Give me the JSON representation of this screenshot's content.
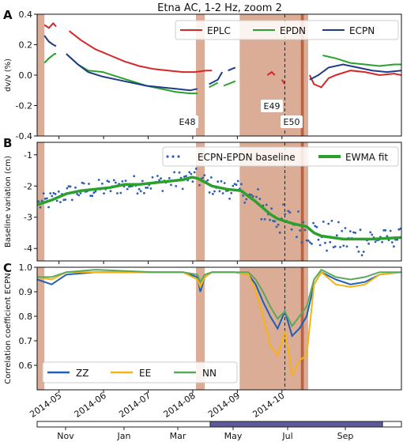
{
  "figure": {
    "title": "Etna AC, 1-2 Hz, zoom 2",
    "x_ticks": [
      "2014-05",
      "2014-06",
      "2014-07",
      "2014-08",
      "2014-09",
      "2014-10"
    ],
    "bottom_timeline": {
      "labels": [
        "Nov",
        "Jan",
        "Mar",
        "May",
        "Jul",
        "Sep"
      ],
      "highlight_color": "#5b5b97"
    },
    "shading_color": "#c8805e",
    "eruption_line_color": "#b85a35"
  },
  "chart_data": [
    {
      "panel": "A",
      "type": "line",
      "ylabel": "dv/v (%)",
      "ylim": [
        -0.4,
        0.4
      ],
      "yticks": [
        "0.4",
        "0.2",
        "0.0",
        "-0.2",
        "-0.4"
      ],
      "legend": [
        "EPLC",
        "EPDN",
        "ECPN"
      ],
      "legend_position": "top-right",
      "annotations": [
        "E48",
        "E49",
        "E50"
      ],
      "series": [
        {
          "name": "EPLC",
          "color": "#d62728",
          "segments": [
            [
              [
                5,
                0.33
              ],
              [
                8,
                0.31
              ],
              [
                11,
                0.34
              ],
              [
                13,
                0.32
              ]
            ],
            [
              [
                22,
                0.29
              ],
              [
                30,
                0.23
              ],
              [
                40,
                0.17
              ],
              [
                50,
                0.13
              ],
              [
                60,
                0.09
              ],
              [
                70,
                0.06
              ],
              [
                80,
                0.04
              ],
              [
                90,
                0.03
              ],
              [
                100,
                0.02
              ],
              [
                108,
                0.02
              ],
              [
                116,
                0.03
              ],
              [
                120,
                0.03
              ]
            ],
            [
              [
                158,
                0.0
              ],
              [
                161,
                0.02
              ],
              [
                163,
                0.0
              ]
            ],
            [
              [
                168,
                -0.03
              ],
              [
                170,
                -0.06
              ]
            ],
            [
              [
                187,
                0.0
              ],
              [
                190,
                -0.06
              ],
              [
                195,
                -0.08
              ],
              [
                200,
                -0.02
              ],
              [
                205,
                0.0
              ],
              [
                215,
                0.03
              ],
              [
                225,
                0.02
              ],
              [
                235,
                0.0
              ],
              [
                245,
                0.01
              ],
              [
                250,
                0.0
              ]
            ]
          ]
        },
        {
          "name": "EPDN",
          "color": "#2ca02c",
          "segments": [
            [
              [
                5,
                0.08
              ],
              [
                8,
                0.11
              ],
              [
                12,
                0.14
              ],
              [
                13,
                0.14
              ]
            ],
            [
              [
                20,
                0.14
              ],
              [
                28,
                0.07
              ],
              [
                35,
                0.03
              ],
              [
                45,
                0.02
              ],
              [
                55,
                -0.01
              ],
              [
                65,
                -0.04
              ],
              [
                75,
                -0.07
              ],
              [
                85,
                -0.09
              ],
              [
                95,
                -0.11
              ],
              [
                105,
                -0.12
              ],
              [
                110,
                -0.12
              ]
            ],
            [
              [
                118,
                -0.08
              ],
              [
                124,
                -0.05
              ]
            ],
            [
              [
                128,
                -0.07
              ],
              [
                136,
                -0.04
              ]
            ],
            [
              [
                196,
                0.13
              ],
              [
                205,
                0.11
              ],
              [
                215,
                0.08
              ],
              [
                225,
                0.07
              ],
              [
                235,
                0.06
              ],
              [
                245,
                0.07
              ],
              [
                250,
                0.07
              ]
            ]
          ]
        },
        {
          "name": "ECPN",
          "color": "#1f3c88",
          "segments": [
            [
              [
                5,
                0.26
              ],
              [
                8,
                0.22
              ],
              [
                11,
                0.2
              ],
              [
                13,
                0.19
              ]
            ],
            [
              [
                20,
                0.14
              ],
              [
                28,
                0.07
              ],
              [
                35,
                0.02
              ],
              [
                45,
                -0.01
              ],
              [
                55,
                -0.03
              ],
              [
                65,
                -0.05
              ],
              [
                75,
                -0.07
              ],
              [
                85,
                -0.08
              ],
              [
                95,
                -0.09
              ],
              [
                105,
                -0.1
              ],
              [
                110,
                -0.09
              ]
            ],
            [
              [
                118,
                -0.06
              ],
              [
                124,
                -0.03
              ],
              [
                127,
                0.02
              ]
            ],
            [
              [
                131,
                0.03
              ],
              [
                136,
                0.05
              ]
            ],
            [
              [
                187,
                -0.03
              ],
              [
                193,
                0.0
              ],
              [
                200,
                0.05
              ],
              [
                210,
                0.07
              ],
              [
                220,
                0.05
              ],
              [
                230,
                0.03
              ],
              [
                240,
                0.02
              ],
              [
                250,
                0.03
              ]
            ]
          ]
        }
      ]
    },
    {
      "panel": "B",
      "type": "scatter",
      "ylabel": "Baseline variation (cm)",
      "ylim": [
        -4.4,
        -0.6
      ],
      "yticks": [
        "-1",
        "-2",
        "-3",
        "-4"
      ],
      "legend": [
        "ECPN-EPDN baseline",
        "EWMA fit"
      ],
      "legend_position": "top-right",
      "series": [
        {
          "name": "ECPN-EPDN baseline",
          "color": "#2d5fb3",
          "kind": "points"
        },
        {
          "name": "EWMA fit",
          "color": "#2ca02c",
          "kind": "line",
          "points": [
            [
              0,
              -2.6
            ],
            [
              10,
              -2.45
            ],
            [
              20,
              -2.25
            ],
            [
              30,
              -2.15
            ],
            [
              40,
              -2.1
            ],
            [
              50,
              -2.05
            ],
            [
              60,
              -1.95
            ],
            [
              70,
              -1.95
            ],
            [
              80,
              -1.9
            ],
            [
              90,
              -1.85
            ],
            [
              100,
              -1.8
            ],
            [
              106,
              -1.72
            ],
            [
              110,
              -1.75
            ],
            [
              120,
              -2.0
            ],
            [
              130,
              -2.1
            ],
            [
              140,
              -2.15
            ],
            [
              150,
              -2.5
            ],
            [
              155,
              -2.7
            ],
            [
              160,
              -2.9
            ],
            [
              165,
              -3.05
            ],
            [
              175,
              -3.2
            ],
            [
              185,
              -3.3
            ],
            [
              190,
              -3.5
            ],
            [
              195,
              -3.6
            ],
            [
              210,
              -3.7
            ],
            [
              230,
              -3.7
            ],
            [
              250,
              -3.65
            ]
          ]
        }
      ]
    },
    {
      "panel": "C",
      "type": "line",
      "ylabel": "Correlation coefficient ECPN",
      "ylim": [
        0.5,
        1.0
      ],
      "yticks": [
        "1.0",
        "0.9",
        "0.8",
        "0.7",
        "0.6"
      ],
      "legend": [
        "ZZ",
        "EE",
        "NN"
      ],
      "legend_position": "bottom-left",
      "series": [
        {
          "name": "ZZ",
          "color": "#1f5fb4",
          "points": [
            [
              0,
              0.95
            ],
            [
              10,
              0.93
            ],
            [
              20,
              0.97
            ],
            [
              40,
              0.98
            ],
            [
              80,
              0.98
            ],
            [
              100,
              0.98
            ],
            [
              110,
              0.96
            ],
            [
              112,
              0.9
            ],
            [
              115,
              0.96
            ],
            [
              120,
              0.98
            ],
            [
              135,
              0.98
            ],
            [
              145,
              0.97
            ],
            [
              150,
              0.93
            ],
            [
              155,
              0.86
            ],
            [
              160,
              0.8
            ],
            [
              165,
              0.75
            ],
            [
              170,
              0.82
            ],
            [
              175,
              0.72
            ],
            [
              180,
              0.75
            ],
            [
              185,
              0.8
            ],
            [
              190,
              0.93
            ],
            [
              195,
              0.98
            ],
            [
              205,
              0.95
            ],
            [
              215,
              0.93
            ],
            [
              225,
              0.94
            ],
            [
              235,
              0.97
            ],
            [
              250,
              0.98
            ]
          ]
        },
        {
          "name": "EE",
          "color": "#f5b316",
          "points": [
            [
              0,
              0.96
            ],
            [
              10,
              0.95
            ],
            [
              20,
              0.98
            ],
            [
              40,
              0.98
            ],
            [
              80,
              0.98
            ],
            [
              100,
              0.98
            ],
            [
              110,
              0.95
            ],
            [
              112,
              0.92
            ],
            [
              115,
              0.96
            ],
            [
              120,
              0.98
            ],
            [
              135,
              0.98
            ],
            [
              145,
              0.97
            ],
            [
              150,
              0.9
            ],
            [
              155,
              0.8
            ],
            [
              160,
              0.68
            ],
            [
              165,
              0.64
            ],
            [
              170,
              0.74
            ],
            [
              175,
              0.56
            ],
            [
              180,
              0.62
            ],
            [
              185,
              0.64
            ],
            [
              190,
              0.93
            ],
            [
              195,
              0.98
            ],
            [
              205,
              0.93
            ],
            [
              215,
              0.92
            ],
            [
              225,
              0.93
            ],
            [
              235,
              0.97
            ],
            [
              250,
              0.98
            ]
          ]
        },
        {
          "name": "NN",
          "color": "#5aa85a",
          "points": [
            [
              0,
              0.96
            ],
            [
              10,
              0.96
            ],
            [
              20,
              0.98
            ],
            [
              40,
              0.99
            ],
            [
              80,
              0.98
            ],
            [
              100,
              0.98
            ],
            [
              110,
              0.97
            ],
            [
              112,
              0.94
            ],
            [
              115,
              0.97
            ],
            [
              120,
              0.98
            ],
            [
              135,
              0.98
            ],
            [
              145,
              0.98
            ],
            [
              150,
              0.95
            ],
            [
              155,
              0.9
            ],
            [
              160,
              0.84
            ],
            [
              165,
              0.79
            ],
            [
              170,
              0.82
            ],
            [
              175,
              0.76
            ],
            [
              180,
              0.8
            ],
            [
              185,
              0.84
            ],
            [
              190,
              0.95
            ],
            [
              195,
              0.99
            ],
            [
              205,
              0.96
            ],
            [
              215,
              0.95
            ],
            [
              225,
              0.96
            ],
            [
              235,
              0.98
            ],
            [
              250,
              0.98
            ]
          ]
        }
      ]
    }
  ]
}
